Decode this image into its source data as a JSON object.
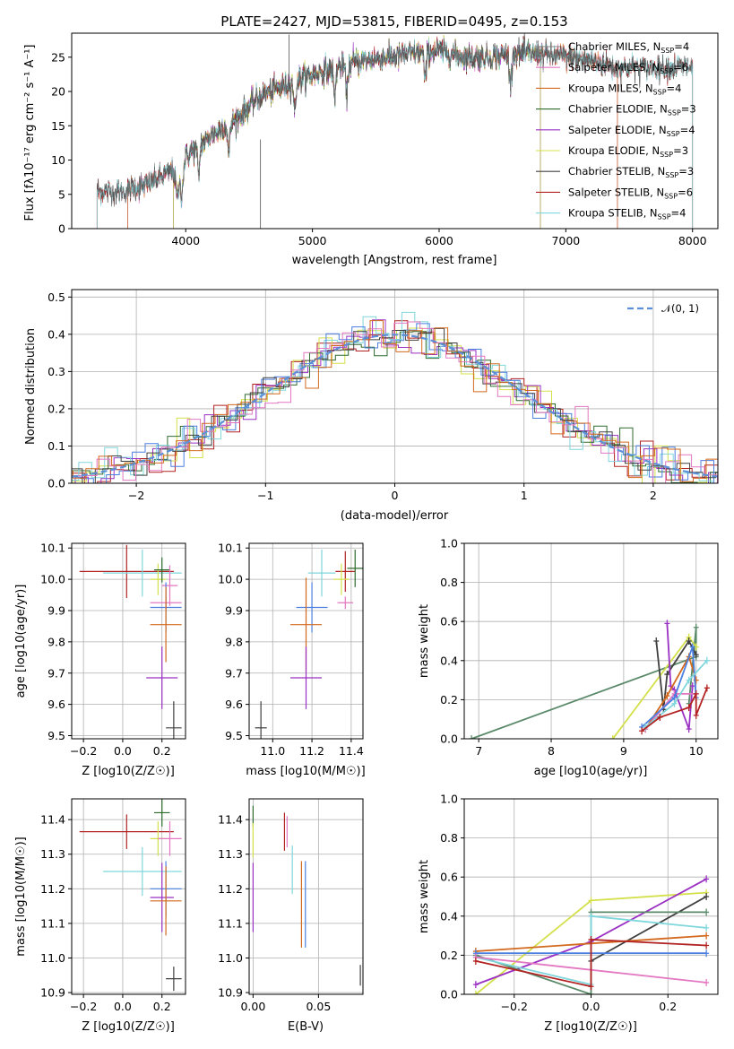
{
  "figure": {
    "title": "PLATE=2427, MJD=53815, FIBERID=0495, z=0.153"
  },
  "colors": {
    "chabrier_miles": "#7f7f7f",
    "salpeter_miles": "#e377c2",
    "kroupa_miles": "#d2691e",
    "chabrier_elodie": "#2e6b2e",
    "salpeter_elodie": "#9b30c4",
    "kroupa_elodie": "#d4e04a",
    "chabrier_stelib": "#404040",
    "salpeter_stelib": "#b22222",
    "kroupa_stelib": "#7fd6dc",
    "normal": "#5b8fd6",
    "blue": "#4a7fe0",
    "green_line": "#5a8a6a"
  },
  "chart_data": [
    {
      "id": "spectrum",
      "type": "line",
      "xlabel": "wavelength [Angstrom, rest frame]",
      "ylabel": "Flux [fλ10⁻¹⁷ erg cm⁻² s⁻¹ A⁻¹]",
      "xlim": [
        3100,
        8200
      ],
      "ylim": [
        0,
        28.5
      ],
      "xticks": [
        4000,
        5000,
        6000,
        7000,
        8000
      ],
      "yticks": [
        0,
        5,
        10,
        15,
        20,
        25
      ],
      "legend_position": "top-right",
      "legend": [
        {
          "label": "Chabrier MILES, N",
          "sub": "SSP",
          "tail": "=4",
          "color_key": "chabrier_miles"
        },
        {
          "label": "Salpeter MILES, N",
          "sub": "SSP",
          "tail": "=6",
          "color_key": "salpeter_miles"
        },
        {
          "label": "Kroupa MILES, N",
          "sub": "SSP",
          "tail": "=4",
          "color_key": "kroupa_miles"
        },
        {
          "label": "Chabrier ELODIE, N",
          "sub": "SSP",
          "tail": "=3",
          "color_key": "chabrier_elodie"
        },
        {
          "label": "Salpeter ELODIE, N",
          "sub": "SSP",
          "tail": "=4",
          "color_key": "salpeter_elodie"
        },
        {
          "label": "Kroupa ELODIE, N",
          "sub": "SSP",
          "tail": "=3",
          "color_key": "kroupa_elodie"
        },
        {
          "label": "Chabrier STELIB, N",
          "sub": "SSP",
          "tail": "=3",
          "color_key": "chabrier_stelib"
        },
        {
          "label": "Salpeter STELIB, N",
          "sub": "SSP",
          "tail": "=6",
          "color_key": "salpeter_stelib"
        },
        {
          "label": "Kroupa STELIB, N",
          "sub": "SSP",
          "tail": "=4",
          "color_key": "kroupa_stelib"
        }
      ],
      "continuum": {
        "x": [
          3300,
          3500,
          3700,
          3900,
          4000,
          4200,
          4400,
          4600,
          4800,
          5000,
          5200,
          5400,
          5600,
          5800,
          6000,
          6200,
          6400,
          6600,
          6800,
          7000,
          7200,
          7400
        ],
        "y": [
          5.5,
          5.3,
          6.5,
          8.5,
          10.5,
          13.5,
          16.0,
          19.5,
          21.0,
          22.5,
          23.5,
          24.5,
          25.0,
          25.5,
          26.0,
          25.0,
          25.0,
          25.5,
          25.5,
          25.0,
          24.5,
          23.5
        ]
      },
      "absorption_lines": [
        3933,
        3968,
        4102,
        4340,
        4861,
        5175,
        5270,
        5890,
        6563
      ],
      "model_ranges": [
        {
          "key": "chabrier_miles",
          "x": [
            3540,
            7410
          ]
        },
        {
          "key": "salpeter_miles",
          "x": [
            3540,
            7410
          ]
        },
        {
          "key": "kroupa_miles",
          "x": [
            3540,
            7410
          ]
        },
        {
          "key": "chabrier_elodie",
          "x": [
            3900,
            6800
          ]
        },
        {
          "key": "salpeter_elodie",
          "x": [
            3900,
            6800
          ]
        },
        {
          "key": "kroupa_elodie",
          "x": [
            3900,
            6800
          ]
        },
        {
          "key": "chabrier_stelib",
          "x": [
            3300,
            8000
          ]
        },
        {
          "key": "salpeter_stelib",
          "x": [
            3300,
            8000
          ]
        },
        {
          "key": "kroupa_stelib",
          "x": [
            3300,
            8000
          ]
        }
      ]
    },
    {
      "id": "residuals",
      "type": "line",
      "xlabel": "(data-model)/error",
      "ylabel": "Normed distribution",
      "xlim": [
        -2.5,
        2.5
      ],
      "ylim": [
        0,
        0.52
      ],
      "xticks": [
        -2,
        -1,
        0,
        1,
        2
      ],
      "yticks": [
        0.0,
        0.1,
        0.2,
        0.3,
        0.4,
        0.5
      ],
      "grid": true,
      "legend_position": "top-right",
      "legend": [
        {
          "label": "𝒩(0, 1)",
          "color_key": "normal"
        }
      ]
    },
    {
      "id": "age_vs_Z",
      "type": "scatter",
      "xlabel": "Z [log10(Z/Z☉)]",
      "ylabel": "age  [log10(age/yr)]",
      "xlim": [
        -0.26,
        0.32
      ],
      "ylim": [
        9.49,
        10.115
      ],
      "xticks": [
        -0.2,
        0.0,
        0.2
      ],
      "yticks": [
        9.5,
        9.6,
        9.7,
        9.8,
        9.9,
        10.0,
        10.1
      ],
      "grid": true,
      "points": [
        {
          "key": "salpeter_stelib",
          "x": 0.02,
          "y": 10.025,
          "xerr": 0.24,
          "yerr": 0.085
        },
        {
          "key": "kroupa_stelib",
          "x": 0.1,
          "y": 10.02,
          "xerr": 0.2,
          "yerr": 0.075
        },
        {
          "key": "kroupa_elodie",
          "x": 0.18,
          "y": 10.0,
          "xerr": 0.04,
          "yerr": 0.05
        },
        {
          "key": "chabrier_elodie",
          "x": 0.2,
          "y": 10.03,
          "xerr": 0.04,
          "yerr": 0.04
        },
        {
          "key": "salpeter_miles",
          "x": 0.24,
          "y": 9.98,
          "xerr": 0.04,
          "yerr": 0.065
        },
        {
          "key": "salpeter_miles",
          "x": 0.22,
          "y": 9.925,
          "xerr": 0.08,
          "yerr": 0.02
        },
        {
          "key": "blue",
          "x": 0.22,
          "y": 9.91,
          "xerr": 0.08,
          "yerr": 0.08
        },
        {
          "key": "kroupa_miles",
          "x": 0.22,
          "y": 9.855,
          "xerr": 0.08,
          "yerr": 0.12
        },
        {
          "key": "salpeter_elodie",
          "x": 0.2,
          "y": 9.685,
          "xerr": 0.08,
          "yerr": 0.1
        },
        {
          "key": "chabrier_stelib",
          "x": 0.26,
          "y": 9.525,
          "xerr": 0.04,
          "yerr": 0.085
        }
      ]
    },
    {
      "id": "age_vs_mass",
      "type": "scatter",
      "xlabel": "mass [log10(M/M☉)]",
      "ylabel": "",
      "xlim": [
        10.88,
        11.46
      ],
      "ylim": [
        9.49,
        10.115
      ],
      "xticks": [
        11.0,
        11.2,
        11.4
      ],
      "yticks": [
        9.5,
        9.6,
        9.7,
        9.8,
        9.9,
        10.0,
        10.1
      ],
      "grid": true,
      "points": [
        {
          "key": "kroupa_stelib",
          "x": 11.25,
          "y": 10.02,
          "xerr": 0.07,
          "yerr": 0.075
        },
        {
          "key": "salpeter_stelib",
          "x": 11.37,
          "y": 10.025,
          "xerr": 0.05,
          "yerr": 0.065
        },
        {
          "key": "chabrier_elodie",
          "x": 11.42,
          "y": 10.035,
          "xerr": 0.04,
          "yerr": 0.06
        },
        {
          "key": "kroupa_elodie",
          "x": 11.35,
          "y": 10.0,
          "xerr": 0.04,
          "yerr": 0.05
        },
        {
          "key": "salpeter_miles",
          "x": 11.37,
          "y": 9.925,
          "xerr": 0.04,
          "yerr": 0.02
        },
        {
          "key": "blue",
          "x": 11.2,
          "y": 9.91,
          "xerr": 0.08,
          "yerr": 0.08
        },
        {
          "key": "kroupa_miles",
          "x": 11.17,
          "y": 9.855,
          "xerr": 0.08,
          "yerr": 0.15
        },
        {
          "key": "salpeter_elodie",
          "x": 11.17,
          "y": 9.685,
          "xerr": 0.08,
          "yerr": 0.1
        },
        {
          "key": "chabrier_stelib",
          "x": 10.94,
          "y": 9.525,
          "xerr": 0.03,
          "yerr": 0.085
        }
      ]
    },
    {
      "id": "mass_vs_Z",
      "type": "scatter",
      "xlabel": "Z [log10(Z/Z☉)]",
      "ylabel": "mass [log10(M/M☉)]",
      "xlim": [
        -0.26,
        0.32
      ],
      "ylim": [
        10.895,
        11.46
      ],
      "xticks": [
        -0.2,
        0.0,
        0.2
      ],
      "yticks": [
        10.9,
        11.0,
        11.1,
        11.2,
        11.3,
        11.4
      ],
      "grid": true,
      "points": [
        {
          "key": "salpeter_stelib",
          "x": 0.02,
          "y": 11.365,
          "xerr": 0.24,
          "yerr": 0.05
        },
        {
          "key": "kroupa_stelib",
          "x": 0.1,
          "y": 11.25,
          "xerr": 0.2,
          "yerr": 0.07
        },
        {
          "key": "chabrier_elodie",
          "x": 0.2,
          "y": 11.42,
          "xerr": 0.04,
          "yerr": 0.04
        },
        {
          "key": "kroupa_elodie",
          "x": 0.18,
          "y": 11.345,
          "xerr": 0.04,
          "yerr": 0.05
        },
        {
          "key": "salpeter_miles",
          "x": 0.24,
          "y": 11.345,
          "xerr": 0.06,
          "yerr": 0.05
        },
        {
          "key": "blue",
          "x": 0.22,
          "y": 11.2,
          "xerr": 0.08,
          "yerr": 0.08
        },
        {
          "key": "salpeter_elodie",
          "x": 0.2,
          "y": 11.175,
          "xerr": 0.06,
          "yerr": 0.1
        },
        {
          "key": "kroupa_miles",
          "x": 0.22,
          "y": 11.165,
          "xerr": 0.08,
          "yerr": 0.1
        },
        {
          "key": "chabrier_stelib",
          "x": 0.26,
          "y": 10.94,
          "xerr": 0.04,
          "yerr": 0.035
        }
      ]
    },
    {
      "id": "mass_vs_ebv",
      "type": "scatter",
      "xlabel": "E(B-V)",
      "ylabel": "",
      "xlim": [
        -0.003,
        0.084
      ],
      "ylim": [
        10.895,
        11.46
      ],
      "xticks": [
        0.0,
        0.05
      ],
      "yticks": [
        10.9,
        11.0,
        11.1,
        11.2,
        11.3,
        11.4
      ],
      "grid": true,
      "points": [
        {
          "key": "chabrier_elodie",
          "x": 0.0,
          "y": 11.41,
          "xerr": 0,
          "yerr": 0.03
        },
        {
          "key": "kroupa_elodie",
          "x": 0.0,
          "y": 11.34,
          "xerr": 0,
          "yerr": 0.05
        },
        {
          "key": "salpeter_elodie",
          "x": 0.0,
          "y": 11.175,
          "xerr": 0,
          "yerr": 0.1
        },
        {
          "key": "salpeter_stelib",
          "x": 0.024,
          "y": 11.365,
          "xerr": 0,
          "yerr": 0.055
        },
        {
          "key": "salpeter_miles",
          "x": 0.026,
          "y": 11.365,
          "xerr": 0,
          "yerr": 0.045
        },
        {
          "key": "kroupa_stelib",
          "x": 0.03,
          "y": 11.255,
          "xerr": 0,
          "yerr": 0.07
        },
        {
          "key": "kroupa_miles",
          "x": 0.037,
          "y": 11.155,
          "xerr": 0,
          "yerr": 0.125
        },
        {
          "key": "blue",
          "x": 0.04,
          "y": 11.155,
          "xerr": 0,
          "yerr": 0.125
        },
        {
          "key": "chabrier_stelib",
          "x": 0.082,
          "y": 10.95,
          "xerr": 0,
          "yerr": 0.03
        }
      ]
    },
    {
      "id": "weight_vs_age",
      "type": "line",
      "xlabel": "age  [log10(age/yr)]",
      "ylabel": "mass weight",
      "xlim": [
        6.8,
        10.3
      ],
      "ylim": [
        0.0,
        1.0
      ],
      "xticks": [
        7,
        8,
        9,
        10
      ],
      "yticks": [
        0.0,
        0.2,
        0.4,
        0.6,
        0.8,
        1.0
      ],
      "grid": true,
      "series": [
        {
          "key": "green_line",
          "x": [
            6.9,
            10.0,
            10.0,
            9.9
          ],
          "y": [
            0.0,
            0.42,
            0.57,
            0.18
          ]
        },
        {
          "key": "kroupa_elodie",
          "x": [
            8.85,
            9.9,
            10.0
          ],
          "y": [
            0.0,
            0.52,
            0.47
          ]
        },
        {
          "key": "chabrier_stelib",
          "x": [
            9.45,
            9.55,
            9.6,
            9.9,
            10.0
          ],
          "y": [
            0.5,
            0.15,
            0.33,
            0.5,
            0.43
          ]
        },
        {
          "key": "salpeter_elodie",
          "x": [
            9.6,
            9.65,
            9.7,
            9.9,
            9.95
          ],
          "y": [
            0.59,
            0.27,
            0.25,
            0.05,
            0.27
          ]
        },
        {
          "key": "kroupa_miles",
          "x": [
            9.3,
            9.6,
            9.9,
            10.0
          ],
          "y": [
            0.05,
            0.22,
            0.42,
            0.3
          ]
        },
        {
          "key": "salpeter_miles",
          "x": [
            9.3,
            9.7,
            10.0
          ],
          "y": [
            0.05,
            0.23,
            0.23
          ]
        },
        {
          "key": "blue",
          "x": [
            9.25,
            9.7,
            9.95,
            10.0
          ],
          "y": [
            0.06,
            0.21,
            0.47,
            0.21
          ]
        },
        {
          "key": "kroupa_stelib",
          "x": [
            9.3,
            9.7,
            9.9,
            10.15
          ],
          "y": [
            0.06,
            0.18,
            0.3,
            0.4
          ]
        },
        {
          "key": "salpeter_stelib",
          "x": [
            9.25,
            9.5,
            9.9,
            10.0,
            10.0,
            10.15
          ],
          "y": [
            0.04,
            0.11,
            0.16,
            0.23,
            0.12,
            0.26
          ]
        }
      ]
    },
    {
      "id": "weight_vs_Z",
      "type": "line",
      "xlabel": "Z [log10(Z/Z☉)]",
      "ylabel": "mass weight",
      "xlim": [
        -0.33,
        0.33
      ],
      "ylim": [
        0.0,
        1.0
      ],
      "xticks": [
        -0.2,
        0.0,
        0.2
      ],
      "yticks": [
        0.0,
        0.2,
        0.4,
        0.6,
        0.8,
        1.0
      ],
      "grid": true,
      "series": [
        {
          "key": "kroupa_elodie",
          "x": [
            -0.3,
            0.0,
            0.3
          ],
          "y": [
            0.0,
            0.48,
            0.52
          ]
        },
        {
          "key": "salpeter_elodie",
          "x": [
            -0.3,
            0.0,
            0.3
          ],
          "y": [
            0.05,
            0.27,
            0.59
          ]
        },
        {
          "key": "chabrier_stelib",
          "x": [
            0.0,
            0.3
          ],
          "y": [
            0.17,
            0.5
          ]
        },
        {
          "key": "green_line",
          "x": [
            -0.3,
            0.0,
            0.0,
            0.3
          ],
          "y": [
            0.2,
            0.0,
            0.42,
            0.42
          ]
        },
        {
          "key": "kroupa_stelib",
          "x": [
            -0.3,
            0.0,
            0.0,
            0.3
          ],
          "y": [
            0.19,
            0.05,
            0.4,
            0.34
          ]
        },
        {
          "key": "kroupa_miles",
          "x": [
            -0.3,
            0.3
          ],
          "y": [
            0.22,
            0.3
          ]
        },
        {
          "key": "blue",
          "x": [
            -0.3,
            0.3
          ],
          "y": [
            0.21,
            0.21
          ]
        },
        {
          "key": "salpeter_miles",
          "x": [
            -0.3,
            0.3
          ],
          "y": [
            0.19,
            0.06
          ]
        },
        {
          "key": "salpeter_stelib",
          "x": [
            -0.3,
            0.0,
            0.0,
            0.3
          ],
          "y": [
            0.17,
            0.04,
            0.28,
            0.25
          ]
        }
      ]
    }
  ]
}
